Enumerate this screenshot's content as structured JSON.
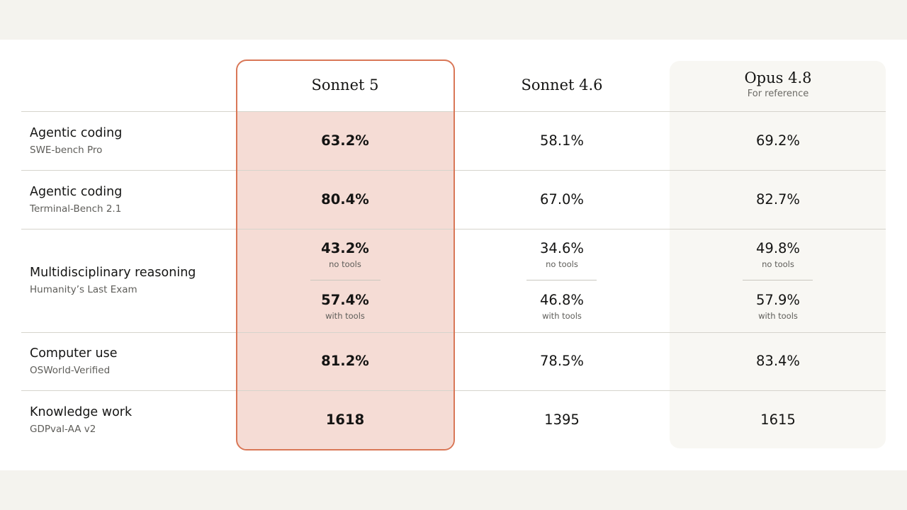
{
  "columns": [
    {
      "name": "Sonnet 5",
      "note": ""
    },
    {
      "name": "Sonnet 4.6",
      "note": ""
    },
    {
      "name": "Opus 4.8",
      "note": "For reference"
    }
  ],
  "rows": [
    {
      "title": "Agentic coding",
      "benchmark": "SWE-bench Pro",
      "values": [
        "63.2%",
        "58.1%",
        "69.2%"
      ]
    },
    {
      "title": "Agentic coding",
      "benchmark": "Terminal-Bench 2.1",
      "values": [
        "80.4%",
        "67.0%",
        "82.7%"
      ]
    },
    {
      "title": "Multidisciplinary reasoning",
      "benchmark": "Humanity’s Last Exam",
      "no_tools": [
        "43.2%",
        "34.6%",
        "49.8%"
      ],
      "no_tools_label": "no tools",
      "with_tools": [
        "57.4%",
        "46.8%",
        "57.9%"
      ],
      "with_tools_label": "with tools"
    },
    {
      "title": "Computer use",
      "benchmark": "OSWorld-Verified",
      "values": [
        "81.2%",
        "78.5%",
        "83.4%"
      ]
    },
    {
      "title": "Knowledge work",
      "benchmark": "GDPval-AA v2",
      "values": [
        "1618",
        "1395",
        "1615"
      ]
    }
  ],
  "colors": {
    "highlight_fill": "#f5dcd5",
    "highlight_border": "#d97757",
    "reference_fill": "#f8f7f3"
  },
  "chart_data": {
    "type": "table",
    "columns": [
      "Sonnet 5",
      "Sonnet 4.6",
      "Opus 4.8"
    ],
    "rows": [
      {
        "label": "Agentic coding / SWE-bench Pro",
        "values": [
          63.2,
          58.1,
          69.2
        ],
        "unit": "%"
      },
      {
        "label": "Agentic coding / Terminal-Bench 2.1",
        "values": [
          80.4,
          67.0,
          82.7
        ],
        "unit": "%"
      },
      {
        "label": "Multidisciplinary reasoning / Humanity’s Last Exam (no tools)",
        "values": [
          43.2,
          34.6,
          49.8
        ],
        "unit": "%"
      },
      {
        "label": "Multidisciplinary reasoning / Humanity’s Last Exam (with tools)",
        "values": [
          57.4,
          46.8,
          57.9
        ],
        "unit": "%"
      },
      {
        "label": "Computer use / OSWorld-Verified",
        "values": [
          81.2,
          78.5,
          83.4
        ],
        "unit": "%"
      },
      {
        "label": "Knowledge work / GDPval-AA v2",
        "values": [
          1618,
          1395,
          1615
        ],
        "unit": ""
      }
    ]
  }
}
